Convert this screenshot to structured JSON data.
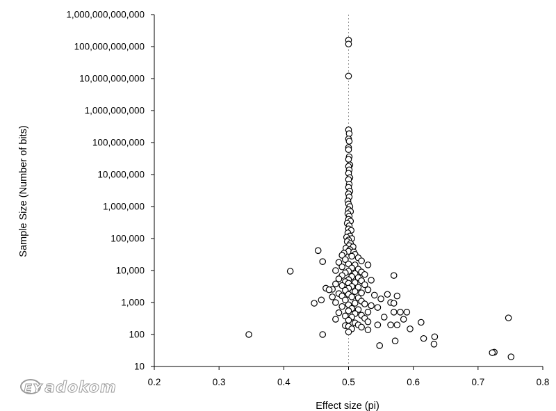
{
  "chart_data": {
    "type": "scatter",
    "xlabel": "Effect size (pi)",
    "ylabel": "Sample Size (Number of bits)",
    "x_scale": "linear",
    "y_scale": "log",
    "xlim": [
      0.2,
      0.8
    ],
    "ylim": [
      10,
      1000000000000
    ],
    "x_ticks": [
      0.2,
      0.3,
      0.4,
      0.5,
      0.6,
      0.7,
      0.8
    ],
    "x_tick_labels": [
      "0.2",
      "0.3",
      "0.4",
      "0.5",
      "0.6",
      "0.7",
      "0.8"
    ],
    "y_ticks": [
      10,
      100,
      1000,
      10000,
      100000,
      1000000,
      10000000,
      100000000,
      1000000000,
      10000000000,
      100000000000,
      1000000000000
    ],
    "y_tick_labels": [
      "10",
      "100",
      "1,000",
      "10,000",
      "100,000",
      "1,000,000",
      "10,000,000",
      "100,000,000",
      "1,000,000,000",
      "10,000,000,000",
      "100,000,000,000",
      "1,000,000,000,000"
    ],
    "reference_line": {
      "x": 0.5,
      "style": "dotted"
    },
    "grid": false,
    "marker": "open-circle",
    "colors": {
      "marker_stroke": "#000000",
      "marker_fill": "#ffffff",
      "reference_line": "#999999"
    },
    "points": [
      [
        0.5,
        160000000000
      ],
      [
        0.5,
        120000000000
      ],
      [
        0.5,
        12000000000
      ],
      [
        0.5,
        250000000
      ],
      [
        0.501,
        190000000
      ],
      [
        0.5,
        130000000
      ],
      [
        0.501,
        110000000
      ],
      [
        0.5,
        70000000
      ],
      [
        0.5,
        60000000
      ],
      [
        0.501,
        36000000
      ],
      [
        0.5,
        30000000
      ],
      [
        0.502,
        20000000
      ],
      [
        0.5,
        18000000
      ],
      [
        0.501,
        14000000
      ],
      [
        0.5,
        11000000
      ],
      [
        0.502,
        8000000
      ],
      [
        0.5,
        7000000
      ],
      [
        0.501,
        5000000
      ],
      [
        0.5,
        4000000
      ],
      [
        0.502,
        3000000
      ],
      [
        0.5,
        2500000
      ],
      [
        0.501,
        2000000
      ],
      [
        0.499,
        1500000
      ],
      [
        0.5,
        1200000
      ],
      [
        0.502,
        1000000
      ],
      [
        0.5,
        800000
      ],
      [
        0.503,
        700000
      ],
      [
        0.499,
        600000
      ],
      [
        0.501,
        500000
      ],
      [
        0.5,
        400000
      ],
      [
        0.503,
        350000
      ],
      [
        0.498,
        300000
      ],
      [
        0.501,
        250000
      ],
      [
        0.5,
        200000
      ],
      [
        0.504,
        180000
      ],
      [
        0.499,
        150000
      ],
      [
        0.502,
        120000
      ],
      [
        0.497,
        110000
      ],
      [
        0.505,
        100000
      ],
      [
        0.5,
        90000
      ],
      [
        0.498,
        80000
      ],
      [
        0.503,
        70000
      ],
      [
        0.501,
        60000
      ],
      [
        0.507,
        55000
      ],
      [
        0.496,
        50000
      ],
      [
        0.502,
        45000
      ],
      [
        0.5,
        40000
      ],
      [
        0.508,
        38000
      ],
      [
        0.493,
        35000
      ],
      [
        0.51,
        32000
      ],
      [
        0.49,
        30000
      ],
      [
        0.505,
        28000
      ],
      [
        0.515,
        25000
      ],
      [
        0.495,
        22000
      ],
      [
        0.52,
        20000
      ],
      [
        0.485,
        18000
      ],
      [
        0.5,
        16000
      ],
      [
        0.51,
        15000
      ],
      [
        0.53,
        15000
      ],
      [
        0.49,
        13000
      ],
      [
        0.505,
        12000
      ],
      [
        0.515,
        11000
      ],
      [
        0.48,
        10000
      ],
      [
        0.5,
        9500
      ],
      [
        0.52,
        9000
      ],
      [
        0.495,
        8500
      ],
      [
        0.51,
        8000
      ],
      [
        0.525,
        7500
      ],
      [
        0.49,
        7000
      ],
      [
        0.505,
        6500
      ],
      [
        0.515,
        6000
      ],
      [
        0.485,
        5500
      ],
      [
        0.5,
        5200
      ],
      [
        0.535,
        5000
      ],
      [
        0.52,
        4800
      ],
      [
        0.495,
        4500
      ],
      [
        0.51,
        4200
      ],
      [
        0.5,
        4000
      ],
      [
        0.48,
        3800
      ],
      [
        0.525,
        3600
      ],
      [
        0.49,
        3400
      ],
      [
        0.505,
        3200
      ],
      [
        0.515,
        3000
      ],
      [
        0.5,
        2800
      ],
      [
        0.475,
        2600
      ],
      [
        0.53,
        2500
      ],
      [
        0.495,
        2400
      ],
      [
        0.51,
        2200
      ],
      [
        0.52,
        2000
      ],
      [
        0.485,
        1900
      ],
      [
        0.5,
        1800
      ],
      [
        0.54,
        1700
      ],
      [
        0.49,
        1600
      ],
      [
        0.505,
        1500
      ],
      [
        0.515,
        1400
      ],
      [
        0.55,
        1300
      ],
      [
        0.495,
        1200
      ],
      [
        0.52,
        1100
      ],
      [
        0.48,
        1000
      ],
      [
        0.51,
        950
      ],
      [
        0.525,
        900
      ],
      [
        0.5,
        850
      ],
      [
        0.535,
        800
      ],
      [
        0.49,
        750
      ],
      [
        0.545,
        700
      ],
      [
        0.505,
        650
      ],
      [
        0.515,
        600
      ],
      [
        0.5,
        550
      ],
      [
        0.53,
        500
      ],
      [
        0.485,
        480
      ],
      [
        0.51,
        450
      ],
      [
        0.52,
        400
      ],
      [
        0.495,
        380
      ],
      [
        0.505,
        350
      ],
      [
        0.525,
        320
      ],
      [
        0.48,
        300
      ],
      [
        0.5,
        280
      ],
      [
        0.53,
        250
      ],
      [
        0.51,
        230
      ],
      [
        0.515,
        200
      ],
      [
        0.545,
        200
      ],
      [
        0.495,
        190
      ],
      [
        0.5,
        180
      ],
      [
        0.52,
        170
      ],
      [
        0.505,
        150
      ],
      [
        0.53,
        140
      ],
      [
        0.5,
        120
      ],
      [
        0.453,
        42000
      ],
      [
        0.46,
        19000
      ],
      [
        0.41,
        9500
      ],
      [
        0.465,
        2800
      ],
      [
        0.47,
        2500
      ],
      [
        0.458,
        1200
      ],
      [
        0.447,
        950
      ],
      [
        0.475,
        1500
      ],
      [
        0.57,
        7000
      ],
      [
        0.56,
        1800
      ],
      [
        0.575,
        1600
      ],
      [
        0.565,
        1000
      ],
      [
        0.57,
        950
      ],
      [
        0.58,
        500
      ],
      [
        0.59,
        500
      ],
      [
        0.57,
        500
      ],
      [
        0.585,
        300
      ],
      [
        0.575,
        200
      ],
      [
        0.565,
        200
      ],
      [
        0.555,
        350
      ],
      [
        0.595,
        150
      ],
      [
        0.612,
        240
      ],
      [
        0.616,
        75
      ],
      [
        0.633,
        85
      ],
      [
        0.632,
        50
      ],
      [
        0.572,
        63
      ],
      [
        0.548,
        45
      ],
      [
        0.46,
        100
      ],
      [
        0.346,
        100
      ],
      [
        0.747,
        330
      ],
      [
        0.725,
        28
      ],
      [
        0.722,
        27
      ],
      [
        0.751,
        20
      ]
    ]
  },
  "watermark": {
    "text": "ᴇʏadokom"
  }
}
